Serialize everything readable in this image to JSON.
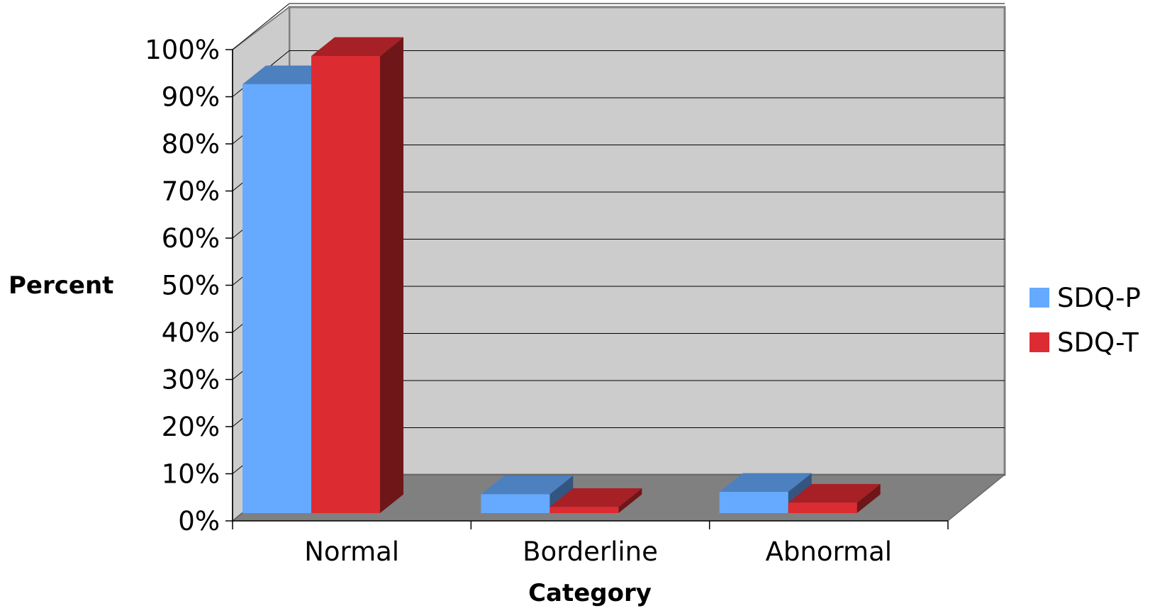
{
  "chart_data": {
    "type": "bar",
    "categories": [
      "Normal",
      "Borderline",
      "Abnormal"
    ],
    "series": [
      {
        "name": "SDQ-P",
        "values": [
          91,
          4,
          4.5
        ],
        "color": "#66aaff"
      },
      {
        "name": "SDQ-T",
        "values": [
          97,
          1.3,
          2.2
        ],
        "color": "#dd2b32"
      }
    ],
    "xlabel": "Category",
    "ylabel": "Percent",
    "ylim": [
      0,
      100
    ],
    "ytick_labels": [
      "0%",
      "10%",
      "20%",
      "30%",
      "40%",
      "50%",
      "60%",
      "70%",
      "80%",
      "90%",
      "100%"
    ],
    "grid": true,
    "legend": "right",
    "style": "3d-clustered-column"
  }
}
